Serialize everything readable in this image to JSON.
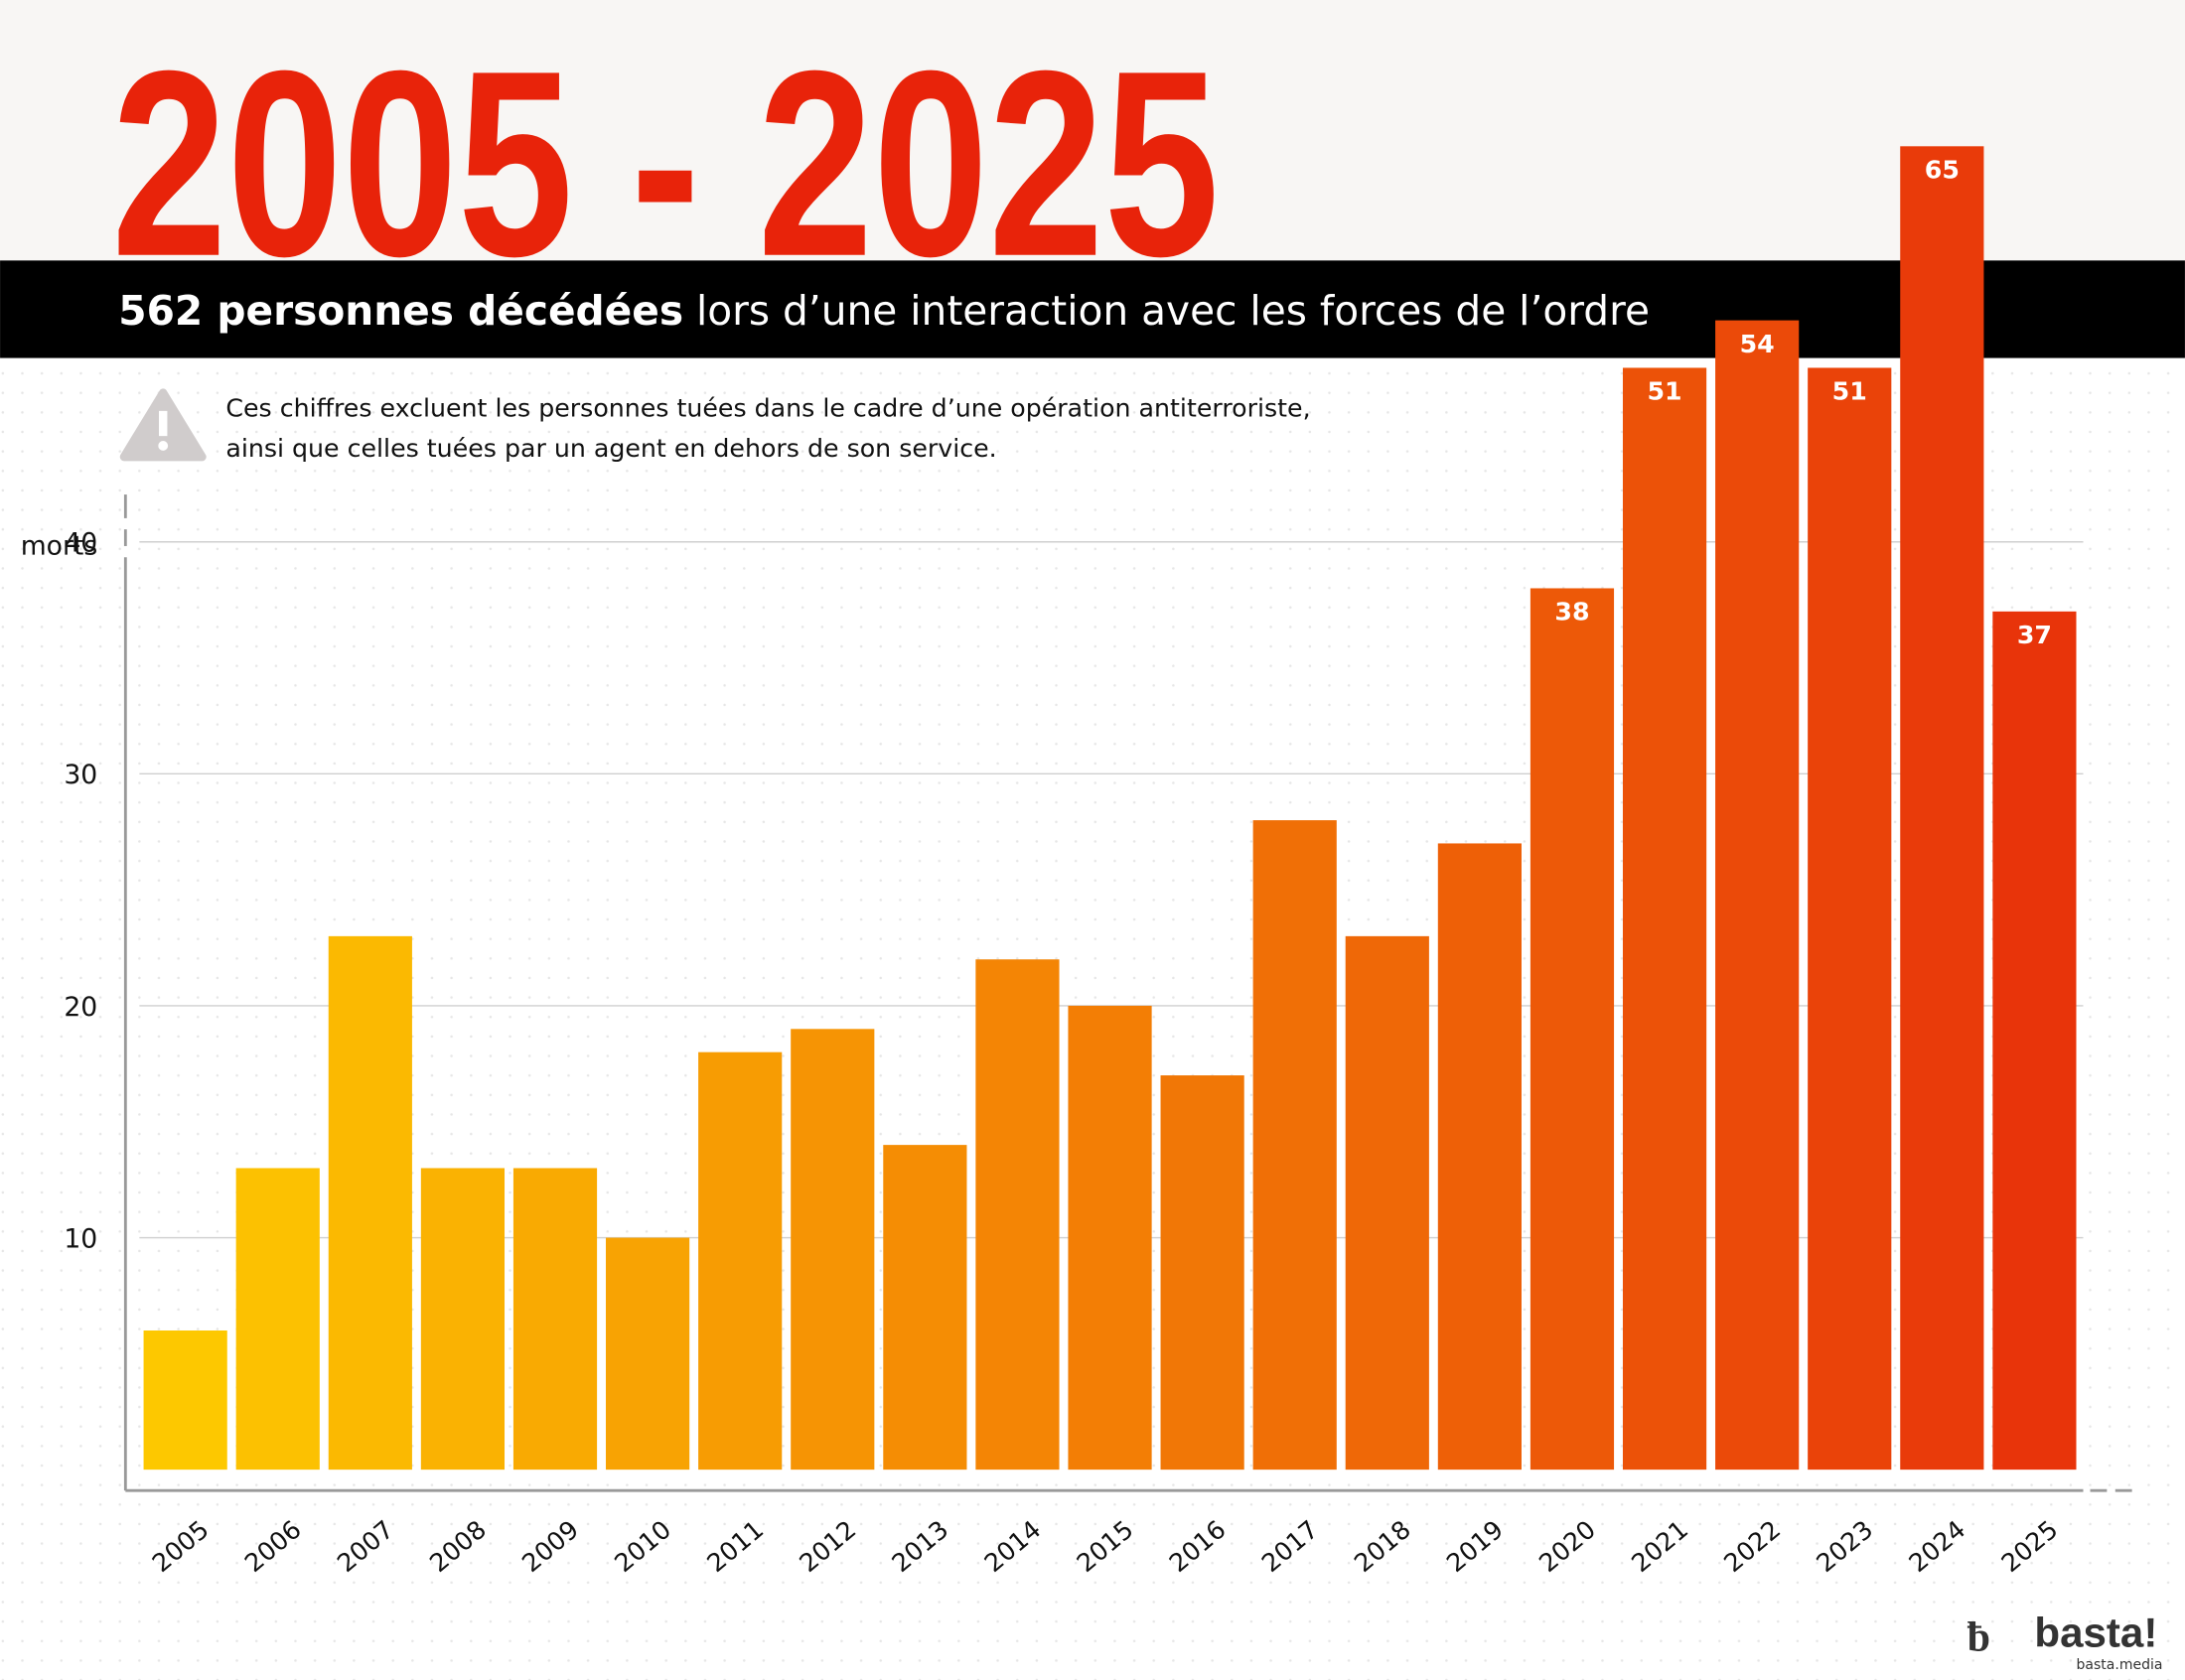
{
  "chart_data": {
    "type": "bar",
    "title": "2005 - 2025",
    "subtitle_bold": "562 personnes décédées",
    "subtitle_rest": "lors d’une interaction avec les forces de l’ordre",
    "note": [
      "Ces chiffres excluent les personnes tuées dans le cadre d’une opération antiterroriste,",
      "ainsi que celles tuées par un agent en dehors de son service."
    ],
    "ylabel": "morts",
    "categories": [
      "2005",
      "2006",
      "2007",
      "2008",
      "2009",
      "2010",
      "2011",
      "2012",
      "2013",
      "2014",
      "2015",
      "2016",
      "2017",
      "2018",
      "2019",
      "2020",
      "2021",
      "2022",
      "2023",
      "2024",
      "2025"
    ],
    "values": [
      6,
      13,
      23,
      13,
      13,
      10,
      18,
      19,
      14,
      22,
      20,
      17,
      28,
      23,
      27,
      38,
      51,
      54,
      51,
      65,
      37
    ],
    "value_labels": [
      null,
      null,
      null,
      null,
      null,
      null,
      null,
      null,
      null,
      null,
      null,
      null,
      null,
      null,
      null,
      "38",
      "51",
      "54",
      "51",
      "65",
      "37"
    ],
    "colors": [
      "#fdc800",
      "#e8340a"
    ],
    "ylim": [
      0,
      65
    ],
    "ybreak": 40,
    "yticks": [
      10,
      20,
      30,
      40
    ],
    "grid": true
  },
  "footer": {
    "logo": "basta!",
    "url": "basta.media"
  }
}
